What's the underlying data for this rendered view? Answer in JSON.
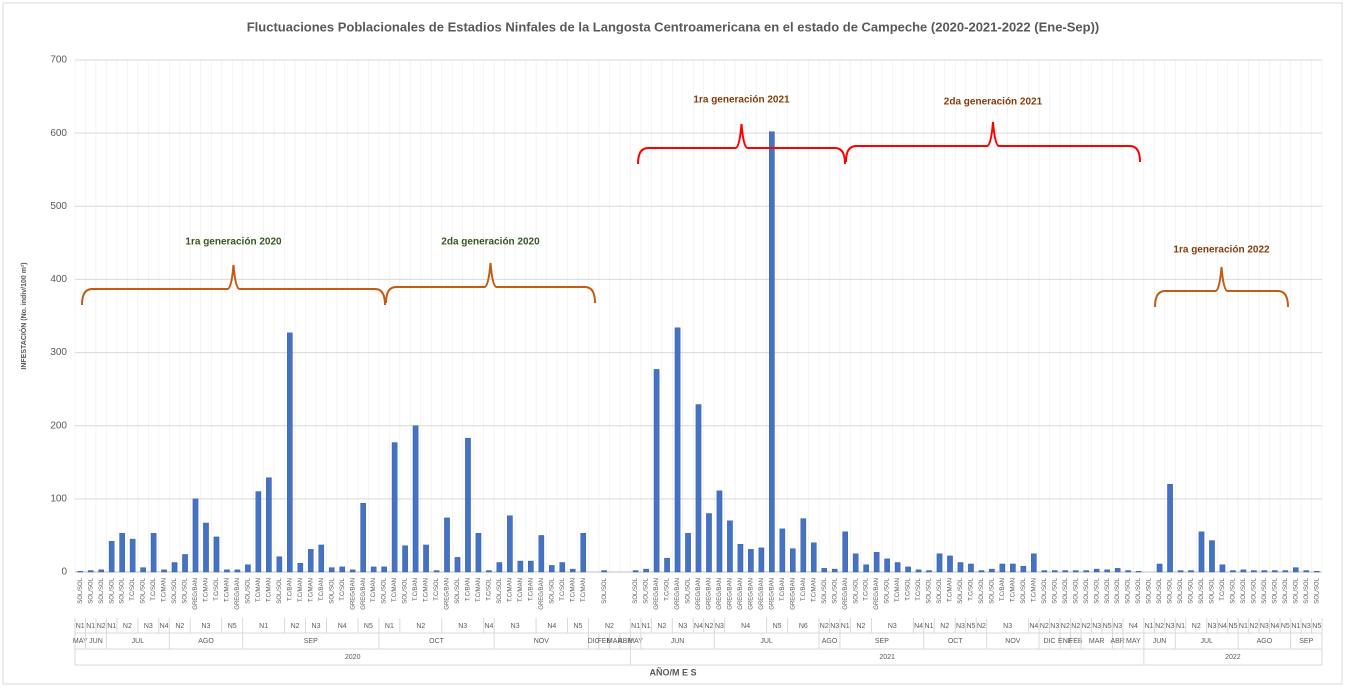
{
  "chart_data": {
    "type": "bar",
    "title": "Fluctuaciones Poblacionales de Estadios Ninfales de la Langosta Centroamericana en el estado de Campeche (2020-2021-2022 (Ene-Sep))",
    "y_label": "INFESTACIÓN (No. indiv/100 m²)",
    "x_label": "AÑO/M E S",
    "color": "#4472c4",
    "ylim": [
      0,
      700
    ],
    "yticks": [
      0,
      100,
      200,
      300,
      400,
      500,
      600,
      700
    ],
    "grid": true,
    "categories": [
      "SOL/SOL",
      "SOL/SOL",
      "SOL/SOL",
      "SOL/SOL",
      "SOL/SOL",
      "T.C/SOL",
      "SOL/SOL",
      "T.C/SOL",
      "T.C/MAN",
      "SOL/SOL",
      "SOL/SOL",
      "GREG/BAN",
      "T.C/MAN",
      "T.C/SOL",
      "T.C/MAN",
      "GREG/BAN",
      "SOL/SOL",
      "T.C/MAN",
      "T.C/MAN",
      "SOL/SOL",
      "T.C/BAN",
      "T.C/MAN",
      "T.C/MAN",
      "T.C/BAN",
      "SOL/SOL",
      "T.C/SOL",
      "GREG/BAN",
      "GREG/BAN",
      "T.C/MAN",
      "SOL/SOL",
      "T.C/MAN",
      "SOL/SOL",
      "T.C/BAN",
      "T.C/MAN",
      "T.C/SOL",
      "GREG/BAN",
      "SOL/SOL",
      "T.C/BAN",
      "T.C/MAN",
      "T.C/SOL",
      "SOL/SOL",
      "T.C/MAN",
      "T.C/MAN",
      "T.C/BAN",
      "GREG/BAN",
      "SOL/SOL",
      "T.C/SOL",
      "T.C/MAN",
      "T.C/MAN",
      null,
      "SOL/SOL",
      null,
      null,
      "SOL/SOL",
      "SOL/SOL",
      "GREG/BAN",
      "T.C/SOL",
      "GREG/BAN",
      "SOL/SOL",
      "GREG/BAN",
      "GREG/BAN",
      "GREG/BAN",
      "GREG/BAN",
      "GREG/BAN",
      "GREG/BAN",
      "GREG/BAN",
      "GREG/BAN",
      "T.C/BAN",
      "GREG/BAN",
      "T.C/BAN",
      "T.C/MAN",
      "SOL/SOL",
      "SOL/SOL",
      "GREG/BAN",
      "SOL/SOL",
      "T.C/SOL",
      "GREG/BAN",
      "SOL/SOL",
      "T.C/MAN",
      "T.C/SOL",
      "T.C/SOL",
      "SOL/SOL",
      "SOL/SOL",
      "T.C/MAN",
      "SOL/SOL",
      "T.C/SOL",
      "SOL/SOL",
      "SOL/SOL",
      "T.C/BAN",
      "T.C/MAN",
      "SOL/SOL",
      "T.C/MAN",
      "SOL/SOL",
      "SOL/SOL",
      "SOL/SOL",
      "SOL/SOL",
      "SOL/SOL",
      "SOL/SOL",
      "SOL/SOL",
      "SOL/SOL",
      "SOL/SOL",
      "SOL/SOL",
      "SOL/SOL",
      "SOL/SOL",
      "SOL/SOL",
      "SOL/SOL",
      "SOL/SOL",
      "SOL/SOL",
      "SOL/SOL",
      "T.C/SOL",
      "SOL/SOL",
      "SOL/SOL",
      "SOL/SOL",
      "SOL/SOL",
      "SOL/SOL",
      "SOL/SOL",
      "SOL/SOL",
      "SOL/SOL",
      "SOL/SOL"
    ],
    "stages": [
      "N1",
      "N1",
      "N2",
      "N1",
      "N2",
      null,
      "N3",
      null,
      "N4",
      "N2",
      null,
      "N3",
      null,
      null,
      "N5",
      null,
      "N1",
      null,
      null,
      null,
      "N2",
      null,
      "N3",
      null,
      "N4",
      null,
      null,
      "N5",
      null,
      "N1",
      null,
      "N2",
      null,
      null,
      null,
      "N3",
      null,
      null,
      null,
      "N4",
      "N3",
      null,
      null,
      null,
      "N4",
      null,
      null,
      "N5",
      null,
      "N2",
      null,
      null,
      null,
      "N1",
      "N1",
      "N2",
      null,
      "N3",
      null,
      "N4",
      "N2",
      "N3",
      "N4",
      null,
      null,
      null,
      "N5",
      null,
      "N6",
      null,
      null,
      "N2",
      "N3",
      "N1",
      "N2",
      null,
      "N3",
      null,
      null,
      null,
      "N4",
      "N1",
      "N2",
      null,
      "N3",
      "N5",
      "N2",
      "N3",
      null,
      null,
      null,
      "N4",
      "N2",
      "N3",
      "N2",
      "N2",
      "N2",
      "N3",
      "N5",
      "N3",
      "N4",
      null,
      "N1",
      "N2",
      "N3",
      "N1",
      "N2",
      null,
      "N3",
      "N4",
      "N5",
      "N1",
      "N2",
      "N3",
      "N4",
      "N5",
      "N1",
      "N3",
      "N5"
    ],
    "months": [
      "MAY",
      "JUN",
      null,
      "JUL",
      null,
      null,
      null,
      null,
      null,
      "AGO",
      null,
      null,
      null,
      null,
      null,
      null,
      "SEP",
      null,
      null,
      null,
      null,
      null,
      null,
      null,
      null,
      null,
      null,
      null,
      null,
      "OCT",
      null,
      null,
      null,
      null,
      null,
      null,
      null,
      null,
      null,
      null,
      "NOV",
      null,
      null,
      null,
      null,
      null,
      null,
      null,
      null,
      "DIC",
      "FEB",
      "MAR",
      "ABR",
      "MAY",
      "JUN",
      null,
      null,
      null,
      null,
      null,
      null,
      "JUL",
      null,
      null,
      null,
      null,
      null,
      null,
      null,
      null,
      null,
      "AGO",
      null,
      "SEP",
      null,
      null,
      null,
      null,
      null,
      null,
      null,
      "OCT",
      null,
      null,
      null,
      null,
      null,
      "NOV",
      null,
      null,
      null,
      null,
      "DIC",
      null,
      "ENE",
      "FEB",
      "MAR",
      null,
      null,
      "ABR",
      "MAY",
      null,
      "JUN",
      null,
      null,
      "JUL",
      null,
      null,
      null,
      null,
      null,
      "AGO",
      null,
      null,
      null,
      null,
      "SEP",
      null,
      null
    ],
    "years": [
      "2020",
      null,
      null,
      null,
      null,
      null,
      null,
      null,
      null,
      null,
      null,
      null,
      null,
      null,
      null,
      null,
      null,
      null,
      null,
      null,
      null,
      null,
      null,
      null,
      null,
      null,
      null,
      null,
      null,
      null,
      null,
      null,
      null,
      null,
      null,
      null,
      null,
      null,
      null,
      null,
      null,
      null,
      null,
      null,
      null,
      null,
      null,
      null,
      null,
      null,
      null,
      null,
      null,
      "2021",
      null,
      null,
      null,
      null,
      null,
      null,
      null,
      null,
      null,
      null,
      null,
      null,
      null,
      null,
      null,
      null,
      null,
      null,
      null,
      null,
      null,
      null,
      null,
      null,
      null,
      null,
      null,
      null,
      null,
      null,
      null,
      null,
      null,
      null,
      null,
      null,
      null,
      null,
      null,
      null,
      null,
      null,
      null,
      null,
      null,
      null,
      null,
      null,
      "2022",
      null,
      null,
      null,
      null,
      null,
      null,
      null,
      null,
      null,
      null,
      null,
      null,
      null,
      null,
      null,
      null
    ],
    "values": [
      1,
      2,
      3,
      42,
      53,
      45,
      6,
      53,
      3,
      13,
      24,
      100,
      67,
      48,
      3,
      3,
      10,
      110,
      129,
      21,
      327,
      12,
      31,
      37,
      6,
      7,
      3,
      94,
      7,
      7,
      177,
      36,
      200,
      37,
      2,
      74,
      20,
      183,
      53,
      2,
      13,
      77,
      15,
      15,
      50,
      9,
      13,
      4,
      53,
      0,
      2,
      0,
      0,
      2,
      4,
      277,
      19,
      334,
      53,
      229,
      80,
      111,
      70,
      38,
      31,
      33,
      602,
      59,
      32,
      73,
      40,
      5,
      4,
      55,
      25,
      10,
      27,
      18,
      13,
      7,
      3,
      2,
      25,
      22,
      13,
      11,
      2,
      4,
      11,
      11,
      8,
      25,
      2,
      2,
      2,
      2,
      2,
      4,
      3,
      5,
      2,
      1,
      0,
      11,
      120,
      2,
      2,
      55,
      43,
      10,
      2,
      3,
      2,
      2,
      2,
      2,
      6,
      2,
      1
    ],
    "annotations": [
      {
        "text": "1ra generación 2020",
        "brace_color": "#c55a11",
        "text_color": "#375623"
      },
      {
        "text": "2da generación 2020",
        "brace_color": "#c55a11",
        "text_color": "#375623"
      },
      {
        "text": "1ra generación 2021",
        "brace_color": "#ff0000",
        "text_color": "#843c0c"
      },
      {
        "text": "2da generación 2021",
        "brace_color": "#ff0000",
        "text_color": "#843c0c"
      },
      {
        "text": "1ra generación 2022",
        "brace_color": "#c55a11",
        "text_color": "#843c0c"
      }
    ]
  }
}
